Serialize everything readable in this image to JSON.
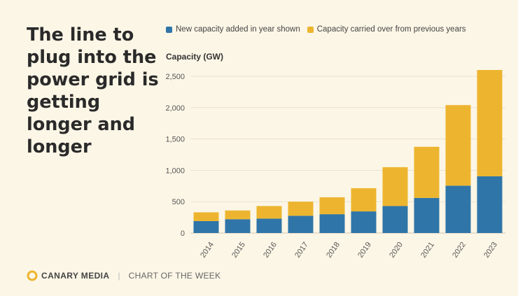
{
  "headline": "The line to plug into the power grid is getting longer and longer",
  "footer": {
    "brand": "CANARY MEDIA",
    "separator": "|",
    "subtitle": "CHART OF THE WEEK"
  },
  "colors": {
    "new": "#2f75a8",
    "carried": "#edb52f",
    "background": "#fcf6e6",
    "grid": "#e9e2d0",
    "logo": "#edb52f"
  },
  "chart_data": {
    "type": "bar",
    "stacked": true,
    "ylabel": "Capacity (GW)",
    "categories": [
      "2014",
      "2015",
      "2016",
      "2017",
      "2018",
      "2019",
      "2020",
      "2021",
      "2022",
      "2023"
    ],
    "series": [
      {
        "name": "New capacity added in year shown",
        "values": [
          190,
          220,
          230,
          275,
          300,
          345,
          430,
          560,
          755,
          905
        ]
      },
      {
        "name": "Capacity carried over from previous years",
        "values": [
          140,
          140,
          200,
          225,
          270,
          370,
          620,
          815,
          1285,
          1695
        ]
      }
    ],
    "ylim": [
      0,
      2600
    ],
    "yticks": [
      0,
      500,
      1000,
      1500,
      2000,
      2500
    ],
    "yticklabels": [
      "0",
      "500",
      "1,000",
      "1,500",
      "2,000",
      "2,500"
    ],
    "grid": true,
    "legend_position": "top"
  }
}
